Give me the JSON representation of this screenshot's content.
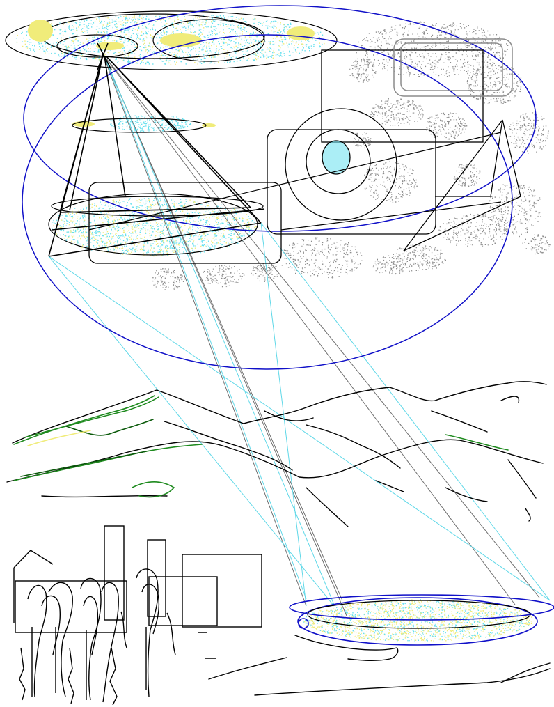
{
  "figure": {
    "colors": {
      "background": "#ffffff",
      "ink": "#000000",
      "blue": "#1010c8",
      "cyan": "#66e0ee",
      "yellow": "#f0ec7a",
      "gray": "#8c8c8c",
      "green": "#1e8a1e",
      "dark_green": "#0b5a0b",
      "sight_line_gray": "#6e6e6e",
      "sight_line_cyan": "#5fd8e8"
    },
    "elements": [
      "top-disc-cloud",
      "large-blue-ellipses",
      "gray-cloud-texture",
      "camera-pyramid",
      "rounded-rectangles",
      "concentric-circles",
      "small-triangle",
      "sight-lines",
      "mountain-range",
      "tree-trunks",
      "bottom-disc-cloud",
      "ground-curves"
    ]
  }
}
